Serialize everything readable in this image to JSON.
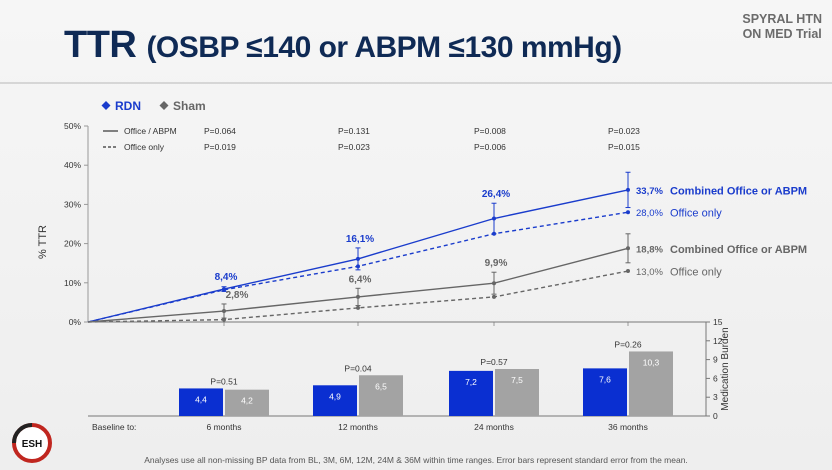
{
  "header": {
    "title_main": "TTR",
    "title_sub": "(OSBP ≤140 or ABPM ≤130 mmHg)",
    "trial_line1": "SPYRAL HTN",
    "trial_line2": "ON MED Trial"
  },
  "legend": {
    "rdn": "RDN",
    "sham": "Sham",
    "office_abpm": "Office / ABPM",
    "office_only": "Office only"
  },
  "logo_text": "ESH",
  "footnote": "Analyses use all non-missing BP data from BL, 3M, 6M, 12M, 24M & 36M within time ranges. Error bars represent standard error from the mean.",
  "colors": {
    "rdn": "#1a3ccc",
    "sham": "#666666",
    "rdn_bar": "#0a2fd1",
    "sham_bar": "#a3a3a3",
    "title": "#0f2a55"
  },
  "chart_data": [
    {
      "type": "line",
      "ylabel": "% TTR",
      "ylim": [
        0,
        50
      ],
      "yticks": [
        "0%",
        "10%",
        "20%",
        "30%",
        "40%",
        "50%"
      ],
      "x": [
        "Baseline",
        "6 months",
        "12 months",
        "24 months",
        "36 months"
      ],
      "p_values": {
        "office_abpm": [
          "P=0.064",
          "P=0.131",
          "P=0.008",
          "P=0.023"
        ],
        "office_only": [
          "P=0.019",
          "P=0.023",
          "P=0.006",
          "P=0.015"
        ]
      },
      "series": [
        {
          "name": "RDN – Office / ABPM",
          "style": "solid",
          "color": "#1a3ccc",
          "values": [
            0,
            8.4,
            16.1,
            26.4,
            33.7
          ],
          "err": [
            0,
            0.6,
            2.8,
            3.9,
            4.5
          ],
          "labels": [
            "",
            "8,4%",
            "16,1%",
            "26,4%",
            "33,7%"
          ],
          "end_label": "Combined Office or ABPM"
        },
        {
          "name": "RDN – Office only",
          "style": "dashed",
          "color": "#1a3ccc",
          "values": [
            0,
            8.2,
            14.2,
            22.5,
            28.0
          ],
          "err": [
            0,
            0,
            0,
            0,
            0
          ],
          "labels": [
            "",
            "",
            "",
            "",
            "28,0%"
          ],
          "end_label": "Office only"
        },
        {
          "name": "Sham – Office / ABPM",
          "style": "solid",
          "color": "#666666",
          "values": [
            0,
            2.8,
            6.4,
            9.9,
            18.8
          ],
          "err": [
            0,
            1.8,
            2.2,
            2.8,
            3.7
          ],
          "labels": [
            "",
            "2,8%",
            "6,4%",
            "9,9%",
            "18,8%"
          ],
          "end_label": "Combined Office or ABPM"
        },
        {
          "name": "Sham – Office only",
          "style": "dashed",
          "color": "#666666",
          "values": [
            0,
            0.6,
            3.6,
            6.4,
            13.0
          ],
          "err": [
            0,
            0,
            0,
            0,
            0
          ],
          "labels": [
            "",
            "",
            "",
            "",
            "13,0%"
          ],
          "end_label": "Office only"
        }
      ]
    },
    {
      "type": "bar",
      "ylabel": "Medication Burden",
      "ylim": [
        0,
        15
      ],
      "yticks": [
        "0",
        "3",
        "6",
        "9",
        "12",
        "15"
      ],
      "baseline_label": "Baseline to:",
      "categories": [
        "6 months",
        "12 months",
        "24 months",
        "36 months"
      ],
      "p_values": [
        "P=0.51",
        "P=0.04",
        "P=0.57",
        "P=0.26"
      ],
      "series": [
        {
          "name": "RDN",
          "values": [
            4.4,
            4.9,
            7.2,
            7.6
          ],
          "labels": [
            "4,4",
            "4,9",
            "7,2",
            "7,6"
          ]
        },
        {
          "name": "Sham",
          "values": [
            4.2,
            6.5,
            7.5,
            10.3
          ],
          "labels": [
            "4,2",
            "6,5",
            "7,5",
            "10,3"
          ]
        }
      ]
    }
  ]
}
